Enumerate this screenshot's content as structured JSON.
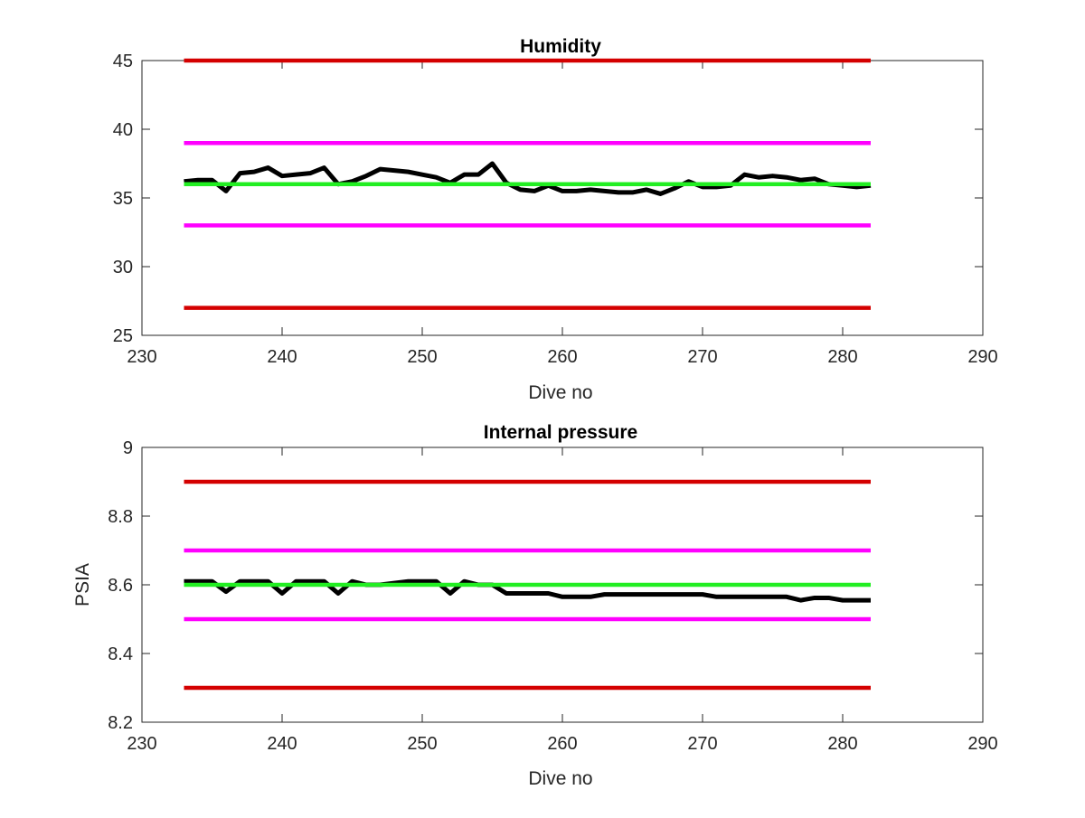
{
  "chart_data": [
    {
      "type": "line",
      "title": "Humidity",
      "xlabel": "Dive no",
      "ylabel": "",
      "xlim": [
        230,
        290
      ],
      "ylim": [
        25,
        45
      ],
      "xticks": [
        230,
        240,
        250,
        260,
        270,
        280,
        290
      ],
      "yticks": [
        25,
        30,
        35,
        40,
        45
      ],
      "grid": false,
      "series": [
        {
          "color": "#000000",
          "x": [
            233,
            234,
            235,
            236,
            237,
            238,
            239,
            240,
            241,
            242,
            243,
            244,
            245,
            246,
            247,
            248,
            249,
            250,
            251,
            252,
            253,
            254,
            255,
            256,
            257,
            258,
            259,
            260,
            261,
            262,
            263,
            264,
            265,
            266,
            267,
            268,
            269,
            270,
            271,
            272,
            273,
            274,
            275,
            276,
            277,
            278,
            279,
            280,
            281,
            282
          ],
          "values": [
            36.2,
            36.3,
            36.3,
            35.5,
            36.8,
            36.9,
            37.2,
            36.6,
            36.7,
            36.8,
            37.2,
            36.0,
            36.2,
            36.6,
            37.1,
            37.0,
            36.9,
            36.7,
            36.5,
            36.1,
            36.7,
            36.7,
            37.5,
            36.1,
            35.6,
            35.5,
            35.9,
            35.5,
            35.5,
            35.6,
            35.5,
            35.4,
            35.4,
            35.6,
            35.3,
            35.7,
            36.2,
            35.8,
            35.8,
            35.9,
            36.7,
            36.5,
            36.6,
            36.5,
            36.3,
            36.4,
            36.0,
            35.9,
            35.8,
            35.9
          ]
        },
        {
          "color": "#d40000",
          "x": [
            233,
            282
          ],
          "values": [
            45,
            45
          ]
        },
        {
          "color": "#ff00ff",
          "x": [
            233,
            282
          ],
          "values": [
            39,
            39
          ]
        },
        {
          "color": "#22ee22",
          "x": [
            233,
            282
          ],
          "values": [
            36,
            36
          ]
        },
        {
          "color": "#ff00ff",
          "x": [
            233,
            282
          ],
          "values": [
            33,
            33
          ]
        },
        {
          "color": "#d40000",
          "x": [
            233,
            282
          ],
          "values": [
            27,
            27
          ]
        }
      ]
    },
    {
      "type": "line",
      "title": "Internal pressure",
      "xlabel": "Dive no",
      "ylabel": "PSIA",
      "xlim": [
        230,
        290
      ],
      "ylim": [
        8.2,
        9
      ],
      "xticks": [
        230,
        240,
        250,
        260,
        270,
        280,
        290
      ],
      "yticks": [
        8.2,
        8.4,
        8.6,
        8.8,
        9
      ],
      "grid": false,
      "series": [
        {
          "color": "#000000",
          "x": [
            233,
            234,
            235,
            236,
            237,
            238,
            239,
            240,
            241,
            242,
            243,
            244,
            245,
            246,
            247,
            248,
            249,
            250,
            251,
            252,
            253,
            254,
            255,
            256,
            257,
            258,
            259,
            260,
            261,
            262,
            263,
            264,
            265,
            266,
            267,
            268,
            269,
            270,
            271,
            272,
            273,
            274,
            275,
            276,
            277,
            278,
            279,
            280,
            281,
            282
          ],
          "values": [
            8.61,
            8.61,
            8.61,
            8.58,
            8.61,
            8.61,
            8.61,
            8.575,
            8.61,
            8.61,
            8.61,
            8.575,
            8.61,
            8.6,
            8.6,
            8.605,
            8.61,
            8.61,
            8.61,
            8.575,
            8.61,
            8.6,
            8.6,
            8.575,
            8.575,
            8.575,
            8.575,
            8.565,
            8.565,
            8.565,
            8.572,
            8.572,
            8.572,
            8.572,
            8.572,
            8.572,
            8.572,
            8.572,
            8.565,
            8.565,
            8.565,
            8.565,
            8.565,
            8.565,
            8.555,
            8.562,
            8.562,
            8.555,
            8.555,
            8.555
          ]
        },
        {
          "color": "#d40000",
          "x": [
            233,
            282
          ],
          "values": [
            8.9,
            8.9
          ]
        },
        {
          "color": "#ff00ff",
          "x": [
            233,
            282
          ],
          "values": [
            8.7,
            8.7
          ]
        },
        {
          "color": "#22ee22",
          "x": [
            233,
            282
          ],
          "values": [
            8.6,
            8.6
          ]
        },
        {
          "color": "#ff00ff",
          "x": [
            233,
            282
          ],
          "values": [
            8.5,
            8.5
          ]
        },
        {
          "color": "#d40000",
          "x": [
            233,
            282
          ],
          "values": [
            8.3,
            8.3
          ]
        }
      ]
    }
  ]
}
